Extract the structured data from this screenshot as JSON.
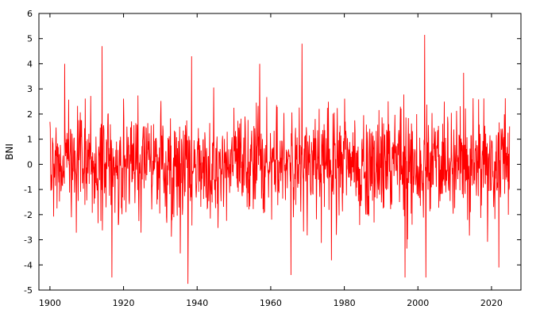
{
  "chart_data": {
    "type": "line",
    "title": "",
    "xlabel": "",
    "ylabel": "BNI",
    "xlim": [
      1897,
      2028
    ],
    "ylim": [
      -5,
      6
    ],
    "x_ticks": [
      1900,
      1920,
      1940,
      1960,
      1980,
      2000,
      2020
    ],
    "y_ticks": [
      -5,
      -4,
      -3,
      -2,
      -1,
      0,
      1,
      2,
      3,
      4,
      5,
      6
    ],
    "x_tick_labels": [
      "1900",
      "1920",
      "1940",
      "1960",
      "1980",
      "2000",
      "2020"
    ],
    "y_tick_labels": [
      "-5",
      "-4",
      "-3",
      "-2",
      "-1",
      "0",
      "1",
      "2",
      "3",
      "4",
      "5",
      "6"
    ],
    "grid": false,
    "legend": "none",
    "series": [
      {
        "color": "#ff0000",
        "x_start": "1900-01",
        "x_end": "2024-12",
        "x_step": "monthly",
        "seed": 20240,
        "amplitude_sd": 1.05,
        "extremes": [
          {
            "x": 1914.2,
            "y": 4.7
          },
          {
            "x": 1916.8,
            "y": -4.5
          },
          {
            "x": 1937.5,
            "y": -4.75
          },
          {
            "x": 1938.5,
            "y": 4.3
          },
          {
            "x": 1957.0,
            "y": 4.0
          },
          {
            "x": 1965.5,
            "y": -4.4
          },
          {
            "x": 1968.5,
            "y": 4.8
          },
          {
            "x": 1996.5,
            "y": -4.5
          },
          {
            "x": 2001.8,
            "y": 5.15
          },
          {
            "x": 2002.2,
            "y": -4.5
          },
          {
            "x": 2022.0,
            "y": -4.1
          }
        ]
      }
    ]
  }
}
